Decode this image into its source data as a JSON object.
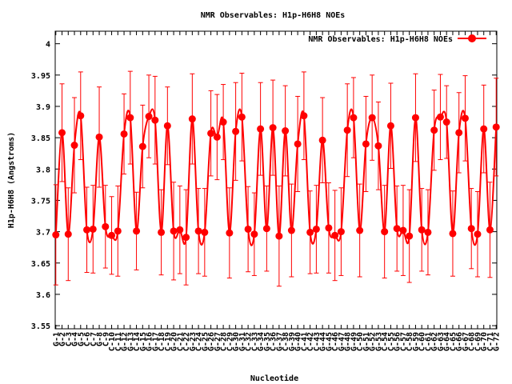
{
  "chart_data": {
    "type": "line",
    "title": "NMR Observables: H1p-H6H8 NOEs",
    "xlabel": "Nucleotide",
    "ylabel": "H1p-H6H8 (Angstroms)",
    "ylim": [
      3.545,
      4.02
    ],
    "yticks": [
      "3.55",
      "3.6",
      "3.65",
      "3.7",
      "3.75",
      "3.8",
      "3.85",
      "3.9",
      "3.95",
      "4"
    ],
    "legend": {
      "label": "NMR Observables: H1p-H6H8 NOEs",
      "position": "top-right"
    },
    "grid": false,
    "colors": {
      "series": "#ff0000",
      "frame": "#000000"
    },
    "series": [
      {
        "name": "NMR Observables: H1p-H6H8 NOEs",
        "x": [
          1,
          2,
          3,
          4,
          5,
          6,
          7,
          8,
          9,
          10,
          11,
          12,
          13,
          14,
          15,
          16,
          17,
          18,
          19,
          20,
          21,
          22,
          23,
          24,
          25,
          26,
          27,
          28,
          29,
          30,
          31,
          32,
          33,
          34,
          35,
          36,
          37,
          38,
          39,
          40,
          41,
          42,
          43,
          44,
          45,
          46,
          47,
          48,
          49,
          50,
          51,
          52,
          53,
          54,
          55,
          56,
          57,
          58,
          59,
          60,
          61,
          62,
          63,
          64,
          65,
          66,
          67,
          68,
          69,
          70,
          71,
          72
        ],
        "tick_labels": [
          "G-1",
          "G-2",
          "C-3",
          "G-4",
          "G-5",
          "C-6",
          "C-7",
          "G-8",
          "C-9",
          "C-10",
          "C-11",
          "G-12",
          "G-13",
          "C-14",
          "G-15",
          "G-16",
          "G-17",
          "C-18",
          "C-19",
          "G-20",
          "C-21",
          "C-22",
          "G-23",
          "C-24",
          "G-25",
          "G-26",
          "G-27",
          "C-28",
          "C-29",
          "G-30",
          "G-31",
          "C-32",
          "C-33",
          "G-34",
          "G-35",
          "C-36",
          "G-37",
          "C-38",
          "G-39",
          "G-40",
          "C-41",
          "C-42",
          "C-43",
          "G-44",
          "G-45",
          "C-46",
          "G-47",
          "G-48",
          "G-49",
          "C-50",
          "G-51",
          "G-52",
          "G-53",
          "C-54",
          "C-55",
          "G-56",
          "C-57",
          "C-58",
          "G-59",
          "C-60",
          "C-61",
          "G-62",
          "G-63",
          "G-64",
          "C-65",
          "G-66",
          "G-67",
          "C-68",
          "C-69",
          "G-70",
          "C-71",
          "G-72"
        ],
        "values": [
          3.695,
          3.858,
          3.696,
          3.838,
          3.885,
          3.703,
          3.704,
          3.851,
          3.708,
          3.694,
          3.701,
          3.856,
          3.882,
          3.701,
          3.836,
          3.884,
          3.878,
          3.699,
          3.869,
          3.701,
          3.703,
          3.691,
          3.88,
          3.701,
          3.699,
          3.857,
          3.851,
          3.875,
          3.698,
          3.86,
          3.883,
          3.704,
          3.696,
          3.864,
          3.705,
          3.866,
          3.693,
          3.861,
          3.702,
          3.84,
          3.885,
          3.699,
          3.704,
          3.846,
          3.706,
          3.694,
          3.7,
          3.862,
          3.882,
          3.702,
          3.84,
          3.882,
          3.837,
          3.7,
          3.869,
          3.705,
          3.702,
          3.693,
          3.882,
          3.703,
          3.699,
          3.862,
          3.883,
          3.875,
          3.697,
          3.858,
          3.881,
          3.705,
          3.696,
          3.864,
          3.703,
          3.867
        ],
        "errors": [
          0.08,
          0.078,
          0.074,
          0.076,
          0.07,
          0.068,
          0.07,
          0.08,
          0.066,
          0.062,
          0.072,
          0.064,
          0.074,
          0.062,
          0.066,
          0.066,
          0.07,
          0.068,
          0.062,
          0.078,
          0.07,
          0.076,
          0.072,
          0.068,
          0.07,
          0.068,
          0.068,
          0.06,
          0.072,
          0.078,
          0.07,
          0.068,
          0.066,
          0.074,
          0.068,
          0.076,
          0.08,
          0.072,
          0.074,
          0.076,
          0.07,
          0.066,
          0.07,
          0.068,
          0.072,
          0.072,
          0.07,
          0.074,
          0.064,
          0.074,
          0.076,
          0.068,
          0.07,
          0.074,
          0.068,
          0.068,
          0.072,
          0.074,
          0.07,
          0.066,
          0.068,
          0.064,
          0.068,
          0.058,
          0.068,
          0.064,
          0.068,
          0.064,
          0.068,
          0.07,
          0.076,
          0.078
        ]
      }
    ]
  }
}
